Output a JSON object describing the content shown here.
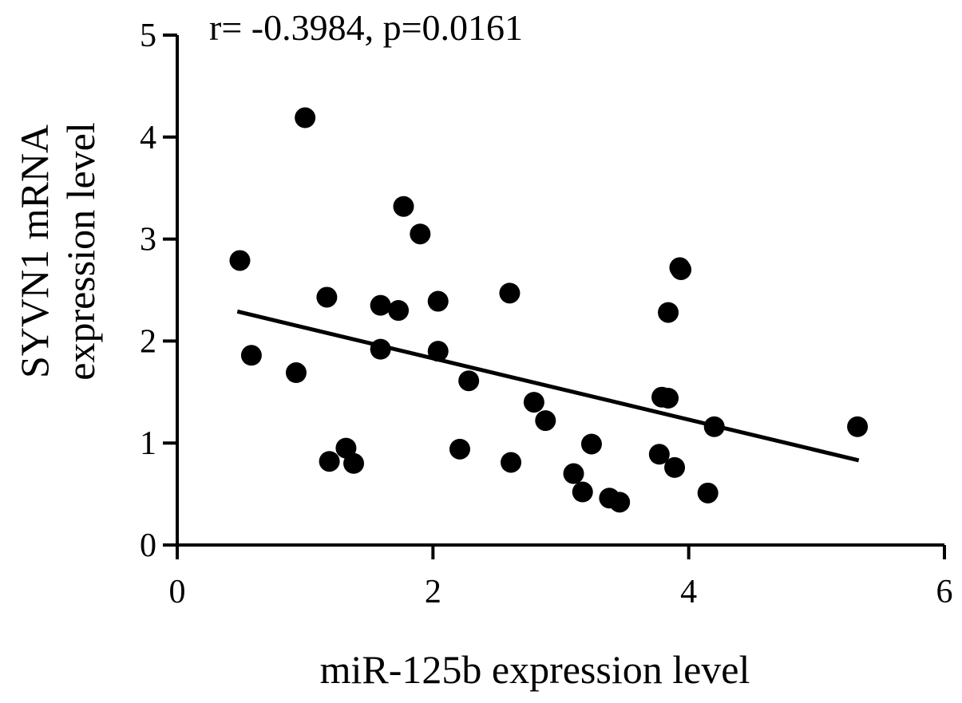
{
  "chart_data": {
    "type": "scatter",
    "annotation": "r= -0.3984, p=0.0161",
    "xlabel": "miR-125b expression level",
    "ylabel_lines": [
      "SYVN1 mRNA",
      "expression level"
    ],
    "xlim": [
      0,
      6
    ],
    "ylim": [
      0,
      5
    ],
    "x_ticks": [
      0,
      2,
      4,
      6
    ],
    "y_ticks": [
      0,
      1,
      2,
      3,
      4,
      5
    ],
    "grid": false,
    "legend": "none",
    "point_color": "#000000",
    "points": [
      {
        "x": 1.0,
        "y": 4.19
      },
      {
        "x": 1.77,
        "y": 3.32
      },
      {
        "x": 1.9,
        "y": 3.05
      },
      {
        "x": 0.49,
        "y": 2.79
      },
      {
        "x": 3.93,
        "y": 2.72
      },
      {
        "x": 3.94,
        "y": 2.7
      },
      {
        "x": 2.6,
        "y": 2.47
      },
      {
        "x": 1.17,
        "y": 2.43
      },
      {
        "x": 2.04,
        "y": 2.39
      },
      {
        "x": 1.59,
        "y": 2.35
      },
      {
        "x": 1.73,
        "y": 2.3
      },
      {
        "x": 3.84,
        "y": 2.28
      },
      {
        "x": 1.59,
        "y": 1.92
      },
      {
        "x": 2.04,
        "y": 1.9
      },
      {
        "x": 0.58,
        "y": 1.86
      },
      {
        "x": 0.93,
        "y": 1.69
      },
      {
        "x": 2.28,
        "y": 1.61
      },
      {
        "x": 3.79,
        "y": 1.45
      },
      {
        "x": 3.84,
        "y": 1.44
      },
      {
        "x": 2.79,
        "y": 1.4
      },
      {
        "x": 2.88,
        "y": 1.22
      },
      {
        "x": 4.2,
        "y": 1.16
      },
      {
        "x": 5.32,
        "y": 1.16
      },
      {
        "x": 3.24,
        "y": 0.99
      },
      {
        "x": 1.32,
        "y": 0.95
      },
      {
        "x": 2.21,
        "y": 0.94
      },
      {
        "x": 3.77,
        "y": 0.89
      },
      {
        "x": 1.19,
        "y": 0.82
      },
      {
        "x": 2.61,
        "y": 0.81
      },
      {
        "x": 1.38,
        "y": 0.8
      },
      {
        "x": 3.89,
        "y": 0.76
      },
      {
        "x": 3.1,
        "y": 0.7
      },
      {
        "x": 3.17,
        "y": 0.52
      },
      {
        "x": 4.15,
        "y": 0.51
      },
      {
        "x": 3.38,
        "y": 0.46
      },
      {
        "x": 3.46,
        "y": 0.42
      }
    ],
    "regression_line": {
      "x": [
        0.47,
        5.33
      ],
      "y": [
        2.29,
        0.83
      ]
    }
  }
}
